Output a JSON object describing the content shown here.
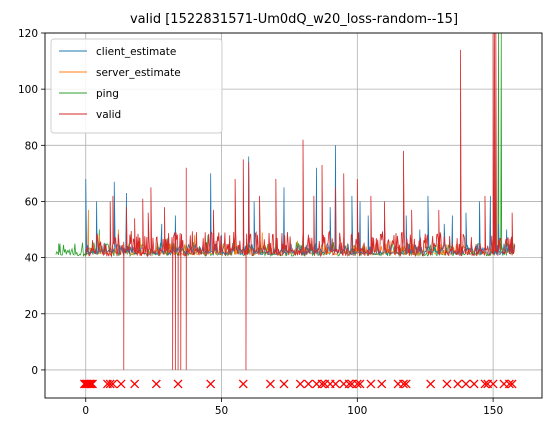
{
  "chart_data": {
    "type": "line",
    "title": "valid [1522831571-Um0dQ_w20_loss-random--15]",
    "xlabel": "",
    "ylabel": "",
    "xlim": [
      -15,
      168
    ],
    "ylim": [
      -10,
      120
    ],
    "x_ticks": [
      0,
      50,
      100,
      150
    ],
    "x_tick_labels": [
      "0",
      "50",
      "100",
      "150"
    ],
    "y_ticks": [
      0,
      20,
      40,
      60,
      80,
      100,
      120
    ],
    "y_tick_labels": [
      "0",
      "20",
      "40",
      "60",
      "80",
      "100",
      "120"
    ],
    "grid": true,
    "legend_position": "top-left",
    "series": [
      {
        "name": "client_estimate",
        "color": "#1f77b4",
        "baseline": 41,
        "x": [
          0,
          0.3,
          4,
          10.5,
          15,
          28,
          33,
          46,
          50,
          60,
          62,
          73,
          85,
          90,
          92,
          98,
          101,
          104,
          110,
          118,
          123,
          126,
          132,
          135,
          140,
          145,
          149,
          152,
          155
        ],
        "y": [
          68,
          45,
          60,
          67,
          63,
          52,
          55,
          70,
          48,
          76,
          60,
          65,
          72,
          58,
          80,
          62,
          60,
          55,
          53,
          55,
          50,
          62,
          52,
          55,
          56,
          60,
          62,
          52,
          50
        ]
      },
      {
        "name": "server_estimate",
        "color": "#ff7f0e",
        "baseline": 41,
        "x": [
          1,
          5,
          12,
          20,
          30,
          40,
          55,
          65,
          78,
          88,
          100,
          112,
          125,
          138,
          150
        ],
        "y": [
          57,
          48,
          50,
          47,
          46,
          48,
          47,
          49,
          46,
          47,
          48,
          46,
          47,
          48,
          46
        ]
      },
      {
        "name": "ping",
        "color": "#2ca02c",
        "baseline": 40.6,
        "x_start": -11,
        "x_end": 158,
        "x": [
          -10,
          -9.5,
          0,
          5,
          15,
          30,
          45,
          55,
          70,
          80,
          100,
          120,
          140,
          151,
          152,
          153
        ],
        "y": [
          41,
          45,
          43,
          50,
          48,
          47,
          48,
          47,
          47,
          48,
          47,
          47,
          48,
          55,
          120,
          120
        ]
      },
      {
        "name": "valid",
        "color": "#d62728",
        "baseline": 40.5,
        "x_start": 0,
        "x_end": 158,
        "x": [
          9,
          10,
          15,
          18,
          21,
          23,
          24,
          29,
          37,
          47,
          55,
          58,
          60,
          64,
          70,
          80,
          84,
          87,
          92,
          95,
          100,
          105,
          110,
          117,
          120,
          130,
          138,
          147,
          150,
          150.5,
          151,
          157
        ],
        "y": [
          60,
          62,
          58,
          54,
          61,
          56,
          65,
          58,
          72,
          57,
          68,
          75,
          74,
          62,
          68,
          82,
          62,
          73,
          65,
          70,
          68,
          62,
          60,
          78,
          57,
          57,
          114,
          62,
          120,
          120,
          120,
          56
        ],
        "dips_x": [
          14,
          32,
          33,
          34,
          35,
          37,
          59
        ],
        "dips_y": [
          0,
          0,
          0,
          0,
          0,
          0,
          0
        ]
      },
      {
        "name": "",
        "marker": "x",
        "color": "#ff0000",
        "x": [
          -0.5,
          0,
          0.5,
          1,
          1.5,
          2,
          2.5,
          8,
          9,
          10,
          13,
          18,
          26,
          34,
          46,
          58,
          68,
          73,
          79,
          82,
          85,
          87,
          88,
          90,
          92,
          95,
          97,
          98,
          100,
          101,
          105,
          109,
          115,
          117,
          118,
          127,
          133,
          137,
          140,
          143,
          147,
          148,
          150,
          154,
          156,
          157
        ],
        "y": [
          -5,
          -5,
          -5,
          -5,
          -5,
          -5,
          -5,
          -5,
          -5,
          -5,
          -5,
          -5,
          -5,
          -5,
          -5,
          -5,
          -5,
          -5,
          -5,
          -5,
          -5,
          -5,
          -5,
          -5,
          -5,
          -5,
          -5,
          -5,
          -5,
          -5,
          -5,
          -5,
          -5,
          -5,
          -5,
          -5,
          -5,
          -5,
          -5,
          -5,
          -5,
          -5,
          -5,
          -5,
          -5,
          -5
        ]
      }
    ]
  }
}
